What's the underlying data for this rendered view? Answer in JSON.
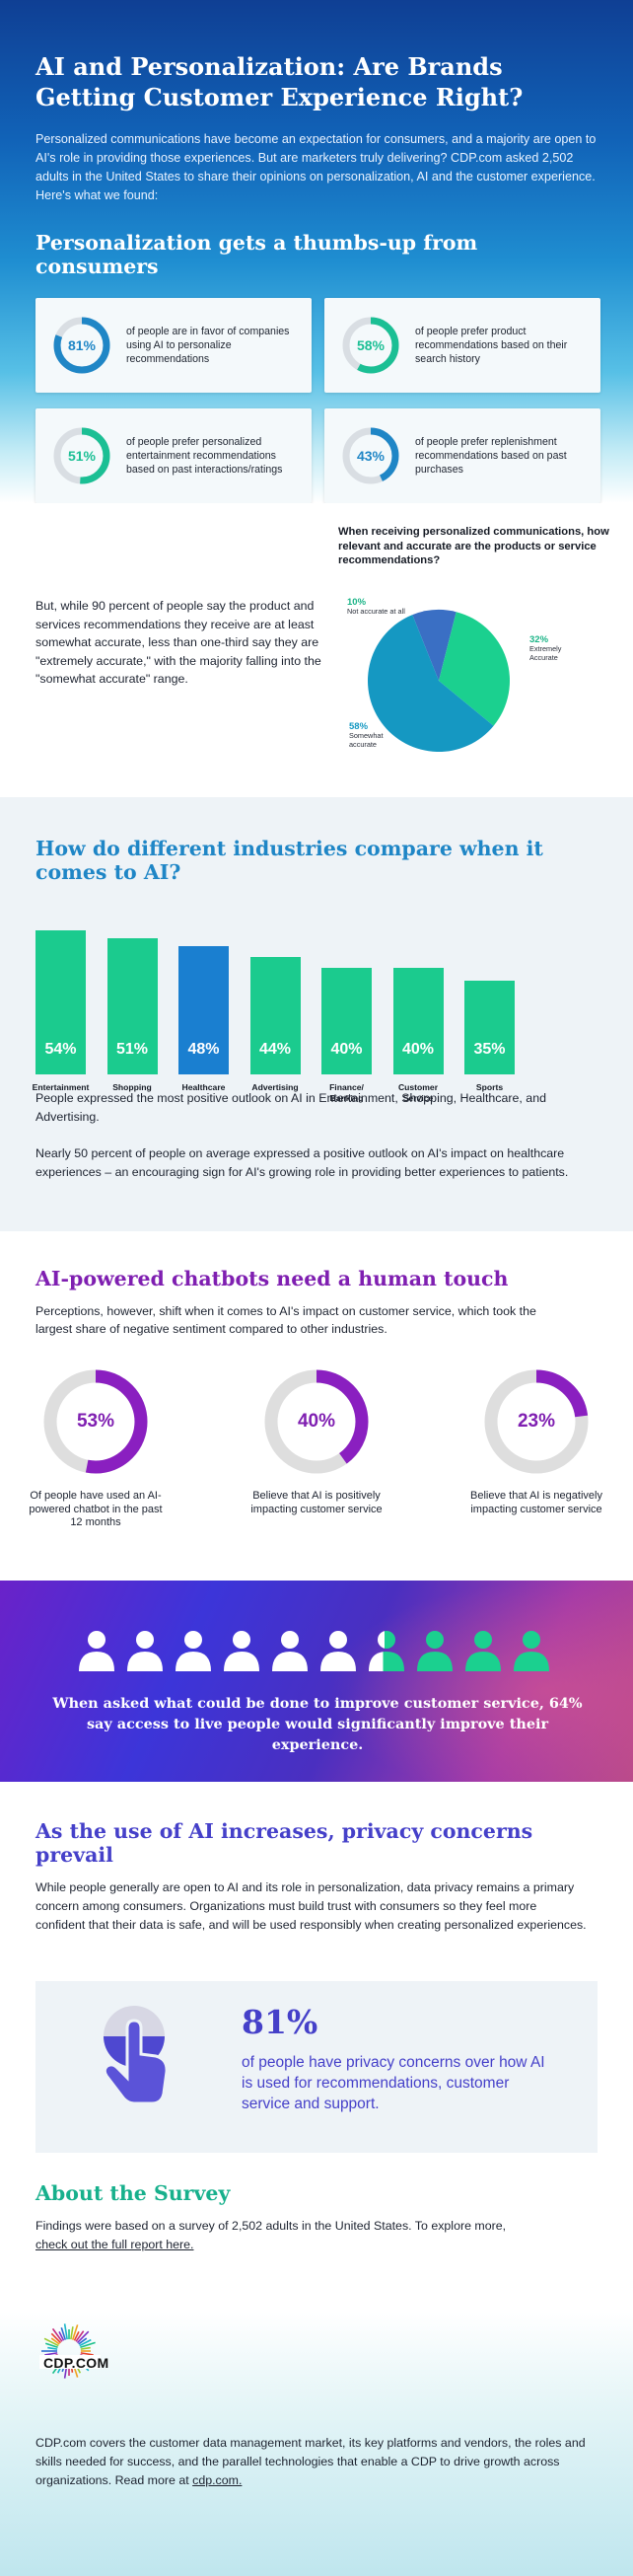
{
  "hero": {
    "title": "AI and Personalization: Are Brands Getting Customer Experience Right?",
    "intro": "Personalized communications have become an expectation for consumers, and a majority are open to AI's role in providing those experiences. But are marketers truly delivering? CDP.com asked 2,502 adults in the United States to share their opinions on personalization, AI and the customer experience. Here's what we found:",
    "section_title": "Personalization gets a thumbs-up from consumers",
    "stats": [
      {
        "value": "81%",
        "fraction": 0.81,
        "color": "#1f86c6",
        "text": "of people are in favor of companies using AI to personalize recommendations"
      },
      {
        "value": "58%",
        "fraction": 0.58,
        "color": "#1bbf94",
        "text": "of people prefer product recommendations based on their search history"
      },
      {
        "value": "51%",
        "fraction": 0.51,
        "color": "#1bbf94",
        "text": "of people prefer personalized entertainment recommendations based on past interactions/ratings"
      },
      {
        "value": "43%",
        "fraction": 0.43,
        "color": "#1f86c6",
        "text": "of people prefer replenishment recommendations based on past purchases"
      }
    ]
  },
  "accuracy": {
    "lead": "But, while 90 percent of people say the product and services recommendations they receive are at least somewhat accurate, less than one-third say they are \"extremely accurate,\" with the majority falling into the \"somewhat accurate\" range.",
    "pie_title": "When receiving personalized communications, how relevant and accurate are the products or service recommendations?",
    "pie": [
      {
        "label": "Not accurate at all",
        "value": "10%",
        "fraction": 0.1,
        "color": "#3a6fc4"
      },
      {
        "label": "Extremely Accurate",
        "value": "32%",
        "fraction": 0.32,
        "color": "#1bd08f"
      },
      {
        "label": "Somewhat accurate",
        "value": "58%",
        "fraction": 0.58,
        "color": "#1598c2"
      }
    ]
  },
  "chart_data": {
    "type": "bar",
    "title": "How do different industries compare when it comes to AI?",
    "categories": [
      "Entertainment",
      "Shopping",
      "Healthcare",
      "Advertising",
      "Finance/ Banking",
      "Customer Service",
      "Sports"
    ],
    "values": [
      54,
      51,
      48,
      44,
      40,
      40,
      35
    ],
    "value_labels": [
      "54%",
      "51%",
      "48%",
      "44%",
      "40%",
      "40%",
      "35%"
    ],
    "colors": [
      "#1bcb8e",
      "#1bcb8e",
      "#1a7fd0",
      "#1bcb8e",
      "#1bcb8e",
      "#1bcb8e",
      "#1bcb8e"
    ],
    "ylim": [
      0,
      54
    ],
    "xlabel": "",
    "ylabel": ""
  },
  "industries": {
    "title": "How do different industries compare when it comes to AI?",
    "text1": "People expressed the most positive outlook on AI in Entertainment, Shopping, Healthcare, and Advertising.",
    "text2": "Nearly 50 percent of people on average expressed a positive outlook on AI's impact on healthcare experiences – an encouraging sign for AI's growing role in providing better experiences to patients."
  },
  "chatbots": {
    "title": "AI-powered chatbots need a human touch",
    "sub": "Perceptions, however, shift when it comes to AI's impact on customer service, which took the largest share of negative sentiment compared to other industries.",
    "accent": "#8a1fc0",
    "donuts": [
      {
        "value": "53%",
        "fraction": 0.53,
        "text": "Of people have used an AI-powered chatbot in the past 12 months"
      },
      {
        "value": "40%",
        "fraction": 0.4,
        "text": "Believe that AI is positively impacting customer service"
      },
      {
        "value": "23%",
        "fraction": 0.23,
        "text": "Believe that AI is negatively impacting customer service"
      }
    ]
  },
  "banner": {
    "message": "When asked what could be done to improve customer service, 64% say access to live people would significantly improve their experience.",
    "people_total": 10,
    "people_highlighted_fraction": 0.36
  },
  "privacy": {
    "title": "As the use of AI increases, privacy concerns prevail",
    "sub": "While people generally are open to AI and its role in personalization, data privacy remains a primary concern among consumers. Organizations must build trust with consumers so they feel more confident that their data is safe, and will be used responsibly when creating personalized experiences.",
    "stat": "81%",
    "stat_text": "of people have privacy concerns over how AI is used for recommendations, customer service and support."
  },
  "survey": {
    "title": "About the Survey",
    "text": "Findings were based on a survey of 2,502 adults in the United States. To explore more,",
    "link": "check out the full report here."
  },
  "footer": {
    "brand": "CDP.COM",
    "text": "CDP.com covers the customer data management market, its key platforms and vendors, the roles and skills needed for success, and the parallel technologies that enable a CDP to drive growth across organizations. Read more at",
    "link": "cdp.com."
  }
}
